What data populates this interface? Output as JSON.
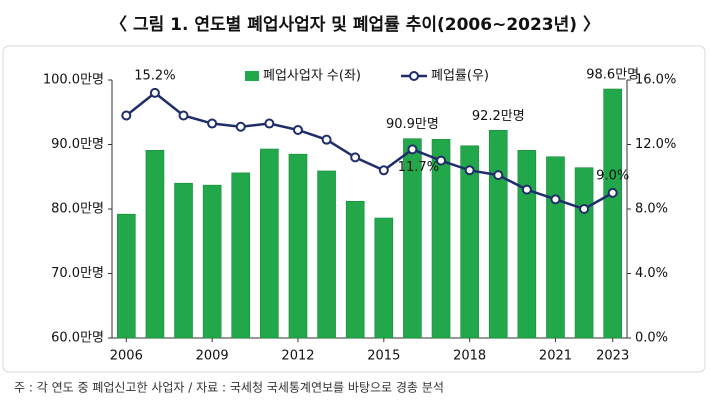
{
  "chart_data": {
    "type": "bar+line",
    "title": "〈 그림 1. 연도별 폐업사업자 및 폐업률 추이(2006~2023년) 〉",
    "note": "주 : 각 연도 중 폐업신고한 사업자 / 자료 : 국세청 국세통계연보를 바탕으로 경총 분석",
    "x": [
      2006,
      2007,
      2008,
      2009,
      2010,
      2011,
      2012,
      2013,
      2014,
      2015,
      2016,
      2017,
      2018,
      2019,
      2020,
      2021,
      2022,
      2023
    ],
    "xlim": [
      2005.5,
      2023.5
    ],
    "xticks": [
      2006,
      2009,
      2012,
      2015,
      2018,
      2021,
      2023
    ],
    "ylim": [
      60,
      100
    ],
    "yticks": [
      {
        "value": 60,
        "label": "60.0만명"
      },
      {
        "value": 70,
        "label": "70.0만명"
      },
      {
        "value": 80,
        "label": "80.0만명"
      },
      {
        "value": 90,
        "label": "90.0만명"
      },
      {
        "value": 100,
        "label": "100.0만명"
      }
    ],
    "y2lim": [
      0,
      16
    ],
    "y2ticks": [
      {
        "value": 0,
        "label": "0.0%"
      },
      {
        "value": 4,
        "label": "4.0%"
      },
      {
        "value": 8,
        "label": "8.0%"
      },
      {
        "value": 12,
        "label": "12.0%"
      },
      {
        "value": 16,
        "label": "16.0%"
      }
    ],
    "series": [
      {
        "name": "폐업사업자 수(좌)",
        "type": "bar",
        "axis": "y",
        "color": "#22a84a",
        "values": [
          79.2,
          89.1,
          84.0,
          83.7,
          85.6,
          89.3,
          88.5,
          85.9,
          81.2,
          78.6,
          90.9,
          90.8,
          89.8,
          92.2,
          89.1,
          88.1,
          86.4,
          98.6
        ],
        "value_labels": [
          null,
          null,
          null,
          null,
          null,
          null,
          null,
          null,
          null,
          null,
          "90.9만명",
          null,
          null,
          "92.2만명",
          null,
          null,
          null,
          "98.6만명"
        ]
      },
      {
        "name": "폐업률(우)",
        "type": "line",
        "axis": "y2",
        "color": "#1f2d6b",
        "values": [
          13.8,
          15.2,
          13.8,
          13.3,
          13.1,
          13.3,
          12.9,
          12.3,
          11.2,
          10.4,
          11.7,
          11.0,
          10.4,
          10.1,
          9.2,
          8.6,
          8.0,
          9.0
        ],
        "value_labels": [
          null,
          "15.2%",
          null,
          null,
          null,
          null,
          null,
          null,
          null,
          null,
          "11.7%",
          null,
          null,
          null,
          null,
          null,
          null,
          "9.0%"
        ]
      }
    ]
  }
}
